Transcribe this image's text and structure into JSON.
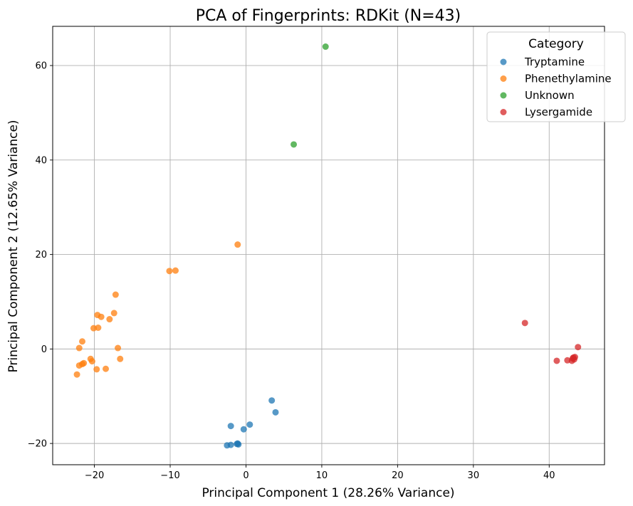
{
  "chart_data": {
    "type": "scatter",
    "title": "PCA of Fingerprints: RDKit (N=43)",
    "xlabel": "Principal Component 1 (28.26% Variance)",
    "ylabel": "Principal Component 2 (12.65% Variance)",
    "xlim": [
      -25.5,
      47.3
    ],
    "ylim": [
      -24.5,
      68.3
    ],
    "xticks": [
      -20,
      -10,
      0,
      10,
      20,
      30,
      40
    ],
    "yticks": [
      -20,
      0,
      20,
      40,
      60
    ],
    "grid": true,
    "legend": {
      "title": "Category",
      "position": "top-right"
    },
    "series": [
      {
        "name": "Tryptamine",
        "color": "#1f77b4",
        "points": [
          [
            -2.5,
            -20.4
          ],
          [
            -2.0,
            -20.3
          ],
          [
            -1.2,
            -20.1
          ],
          [
            -1.1,
            -20.0
          ],
          [
            -1.0,
            -20.2
          ],
          [
            -2.0,
            -16.3
          ],
          [
            -0.3,
            -17.0
          ],
          [
            0.5,
            -16.0
          ],
          [
            3.4,
            -10.9
          ],
          [
            3.9,
            -13.4
          ]
        ]
      },
      {
        "name": "Phenethylamine",
        "color": "#ff7f0e",
        "points": [
          [
            -1.1,
            22.1
          ],
          [
            -10.1,
            16.5
          ],
          [
            -9.3,
            16.6
          ],
          [
            -17.2,
            11.5
          ],
          [
            -17.4,
            7.6
          ],
          [
            -19.6,
            7.2
          ],
          [
            -19.1,
            6.8
          ],
          [
            -18.0,
            6.3
          ],
          [
            -20.1,
            4.4
          ],
          [
            -19.5,
            4.5
          ],
          [
            -21.6,
            1.6
          ],
          [
            -22.0,
            0.2
          ],
          [
            -16.9,
            0.2
          ],
          [
            -16.6,
            -2.1
          ],
          [
            -20.5,
            -2.1
          ],
          [
            -20.3,
            -2.6
          ],
          [
            -21.4,
            -3.0
          ],
          [
            -21.6,
            -3.2
          ],
          [
            -22.0,
            -3.5
          ],
          [
            -18.5,
            -4.2
          ],
          [
            -19.7,
            -4.3
          ],
          [
            -22.3,
            -5.4
          ]
        ]
      },
      {
        "name": "Unknown",
        "color": "#2ca02c",
        "points": [
          [
            10.5,
            64.0
          ],
          [
            6.3,
            43.3
          ]
        ]
      },
      {
        "name": "Lysergamide",
        "color": "#d62728",
        "points": [
          [
            36.8,
            5.5
          ],
          [
            43.8,
            0.4
          ],
          [
            41.0,
            -2.5
          ],
          [
            42.4,
            -2.4
          ],
          [
            43.1,
            -2.0
          ],
          [
            43.2,
            -1.8
          ],
          [
            43.3,
            -2.2
          ],
          [
            43.0,
            -2.5
          ],
          [
            43.4,
            -1.7
          ]
        ]
      }
    ]
  }
}
